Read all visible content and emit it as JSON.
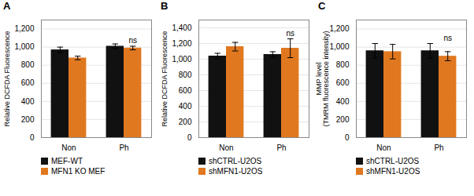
{
  "chart_data": [
    {
      "type": "bar",
      "title": "A",
      "y_label": "Relative DCFDA Fluorescence",
      "categories": [
        "Non",
        "Ph"
      ],
      "series": [
        {
          "name": "MEF-WT",
          "color": "#111111",
          "values": [
            970,
            1010
          ],
          "errors": [
            30,
            25
          ]
        },
        {
          "name": "MFN1 KO MEF",
          "color": "#E07820",
          "values": [
            880,
            990
          ],
          "errors": [
            20,
            20
          ]
        }
      ],
      "annotations": [
        {
          "text": "ns",
          "category": "Ph",
          "series": "MFN1 KO MEF",
          "y": 1040
        }
      ],
      "ylim": [
        0,
        1300
      ],
      "yticks": [
        0,
        200,
        400,
        600,
        800,
        1000,
        1200
      ],
      "grid": true,
      "legend": "bottom"
    },
    {
      "type": "bar",
      "title": "B",
      "y_label": "Relative DCFDA Fluorescence",
      "categories": [
        "Non",
        "Ph"
      ],
      "series": [
        {
          "name": "shCTRL-U2OS",
          "color": "#111111",
          "values": [
            1040,
            1060
          ],
          "errors": [
            35,
            35
          ]
        },
        {
          "name": "shMFN1-U2OS",
          "color": "#E07820",
          "values": [
            1160,
            1140
          ],
          "errors": [
            55,
            120
          ]
        }
      ],
      "annotations": [
        {
          "text": "ns",
          "category": "Ph",
          "series": "shMFN1-U2OS",
          "y": 1290
        }
      ],
      "ylim": [
        0,
        1500
      ],
      "yticks": [
        0,
        200,
        400,
        600,
        800,
        1000,
        1200,
        1400
      ],
      "grid": true,
      "legend": "bottom"
    },
    {
      "type": "bar",
      "title": "C",
      "y_label": "MMP level\n(TMRM fluorescence intensity)",
      "categories": [
        "Non",
        "Ph"
      ],
      "series": [
        {
          "name": "shCTRL-U2OS",
          "color": "#111111",
          "values": [
            960,
            960
          ],
          "errors": [
            80,
            80
          ]
        },
        {
          "name": "shMFN1-U2OS",
          "color": "#E07820",
          "values": [
            950,
            900
          ],
          "errors": [
            80,
            50
          ]
        }
      ],
      "annotations": [
        {
          "text": "ns",
          "category": "Ph",
          "series": "shMFN1-U2OS",
          "y": 1060
        }
      ],
      "ylim": [
        0,
        1300
      ],
      "yticks": [
        0,
        200,
        400,
        600,
        800,
        1000,
        1200
      ],
      "grid": true,
      "legend": "bottom"
    }
  ]
}
